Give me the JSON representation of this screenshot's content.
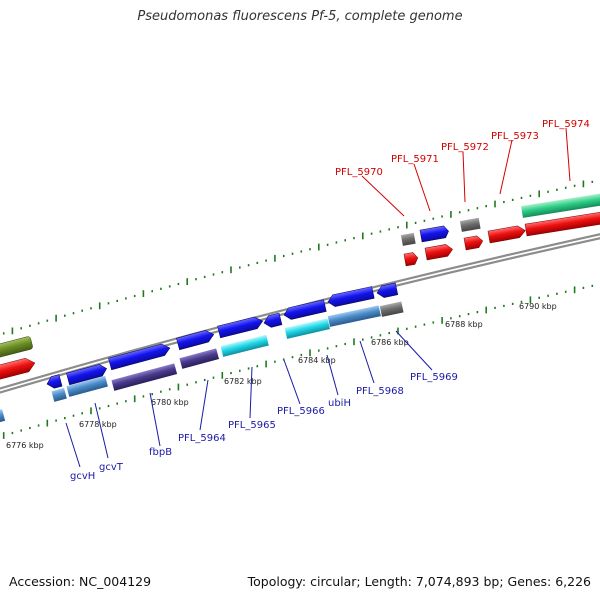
{
  "title": "Pseudomonas fluorescens Pf-5, complete genome",
  "footer": {
    "accession": "Accession: NC_004129",
    "topology": "Topology: circular; Length: 7,074,893 bp; Genes: 6,226"
  },
  "kbp_ticks": [
    "6776 kbp",
    "6778 kbp",
    "6780 kbp",
    "6782 kbp",
    "6784 kbp",
    "6786 kbp",
    "6788 kbp",
    "6790 kbp"
  ],
  "gene_labels_top": [
    "PFL_5970",
    "PFL_5971",
    "PFL_5972",
    "PFL_5973",
    "PFL_5974"
  ],
  "gene_labels_bottom": [
    "gcvH",
    "gcvT",
    "fbpB",
    "PFL_5964",
    "PFL_5965",
    "PFL_5966",
    "ubiH",
    "PFL_5968",
    "PFL_5969"
  ],
  "colors": {
    "backbone": "#8c8c8c",
    "tick": "#1e7a1e",
    "blue_gene": "#1a1aee",
    "red_gene": "#ee1111",
    "green_gene": "#4caf50",
    "olive_gene": "#6b8e23",
    "grey_gene": "#6e6e6e",
    "cyan_gene": "#21d8e6",
    "slate_gene": "#4a8cc8",
    "purple_gene": "#4a3a8c"
  }
}
